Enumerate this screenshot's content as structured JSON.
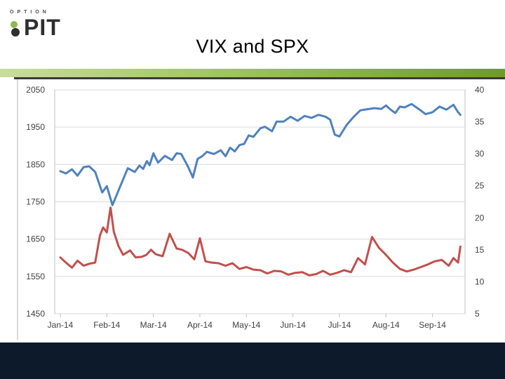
{
  "logo": {
    "small_text": "OPTION",
    "word": "PIT"
  },
  "slide": {
    "title": "VIX and SPX"
  },
  "colors": {
    "spx": "#4f81bd",
    "vix": "#c0504d",
    "accent_green": "#8dbb4e",
    "footer": "#0d1a2c"
  },
  "chart_data": {
    "type": "line",
    "title": "",
    "xlabel": "",
    "ylabel": "",
    "x_ticks": [
      "Jan-14",
      "Feb-14",
      "Mar-14",
      "Apr-14",
      "May-14",
      "Jun-14",
      "Jul-14",
      "Aug-14",
      "Sep-14"
    ],
    "y_left": {
      "ylim": [
        1450,
        2050
      ],
      "ticks": [
        1450,
        1550,
        1650,
        1750,
        1850,
        1950,
        2050
      ]
    },
    "y_right": {
      "ylim": [
        5,
        40
      ],
      "ticks": [
        5,
        10,
        15,
        20,
        25,
        30,
        35,
        40
      ]
    },
    "grid": "horizontal",
    "legend": "none",
    "series": [
      {
        "key": "spx",
        "axis": "left",
        "x": [
          0.0,
          0.12,
          0.25,
          0.37,
          0.5,
          0.62,
          0.75,
          0.9,
          1.0,
          1.12,
          1.3,
          1.45,
          1.6,
          1.7,
          1.78,
          1.86,
          1.92,
          2.0,
          2.1,
          2.25,
          2.4,
          2.5,
          2.6,
          2.75,
          2.85,
          2.95,
          3.05,
          3.15,
          3.3,
          3.45,
          3.55,
          3.65,
          3.75,
          3.85,
          3.95,
          4.05,
          4.15,
          4.3,
          4.4,
          4.55,
          4.65,
          4.8,
          4.95,
          5.1,
          5.25,
          5.4,
          5.55,
          5.7,
          5.8,
          5.9,
          6.0,
          6.15,
          6.3,
          6.45,
          6.6,
          6.75,
          6.9,
          7.0,
          7.1,
          7.2,
          7.3,
          7.4,
          7.55,
          7.7,
          7.85,
          8.0,
          8.15,
          8.3,
          8.45,
          8.55,
          8.6
        ],
        "y": [
          1832,
          1826,
          1837,
          1820,
          1843,
          1845,
          1830,
          1775,
          1792,
          1741,
          1795,
          1840,
          1830,
          1847,
          1838,
          1859,
          1848,
          1880,
          1855,
          1873,
          1862,
          1880,
          1878,
          1843,
          1815,
          1865,
          1872,
          1884,
          1878,
          1888,
          1872,
          1895,
          1885,
          1902,
          1905,
          1928,
          1924,
          1947,
          1951,
          1939,
          1965,
          1965,
          1978,
          1967,
          1980,
          1975,
          1983,
          1978,
          1970,
          1930,
          1925,
          1955,
          1977,
          1995,
          1998,
          2001,
          1999,
          2008,
          1997,
          1988,
          2005,
          2003,
          2012,
          1999,
          1985,
          1990,
          2005,
          1997,
          2010,
          1990,
          1983
        ]
      },
      {
        "key": "vix",
        "axis": "right",
        "x": [
          0.0,
          0.12,
          0.25,
          0.37,
          0.5,
          0.62,
          0.75,
          0.85,
          0.92,
          1.0,
          1.08,
          1.15,
          1.25,
          1.35,
          1.5,
          1.62,
          1.75,
          1.85,
          1.95,
          2.05,
          2.2,
          2.35,
          2.5,
          2.62,
          2.75,
          2.88,
          3.0,
          3.12,
          3.25,
          3.4,
          3.55,
          3.7,
          3.85,
          4.0,
          4.15,
          4.3,
          4.45,
          4.6,
          4.75,
          4.9,
          5.05,
          5.2,
          5.35,
          5.5,
          5.65,
          5.8,
          5.95,
          6.1,
          6.25,
          6.4,
          6.55,
          6.7,
          6.85,
          7.0,
          7.15,
          7.3,
          7.45,
          7.6,
          7.75,
          7.9,
          8.05,
          8.2,
          8.35,
          8.45,
          8.55,
          8.6
        ],
        "y": [
          13.8,
          13.0,
          12.2,
          13.3,
          12.5,
          12.8,
          13.0,
          17.2,
          18.5,
          17.7,
          21.6,
          17.8,
          15.6,
          14.2,
          14.9,
          13.8,
          13.9,
          14.2,
          15.0,
          14.3,
          14.0,
          17.5,
          15.2,
          15.0,
          14.5,
          13.5,
          16.8,
          13.2,
          13.0,
          12.9,
          12.5,
          12.9,
          12.0,
          12.3,
          11.9,
          11.8,
          11.3,
          11.7,
          11.6,
          11.1,
          11.4,
          11.5,
          11.0,
          11.2,
          11.7,
          11.1,
          11.4,
          11.8,
          11.5,
          13.7,
          12.7,
          17.0,
          15.3,
          14.2,
          13.0,
          12.0,
          11.6,
          11.9,
          12.3,
          12.7,
          13.2,
          13.4,
          12.5,
          13.7,
          13.0,
          15.5
        ]
      }
    ]
  }
}
